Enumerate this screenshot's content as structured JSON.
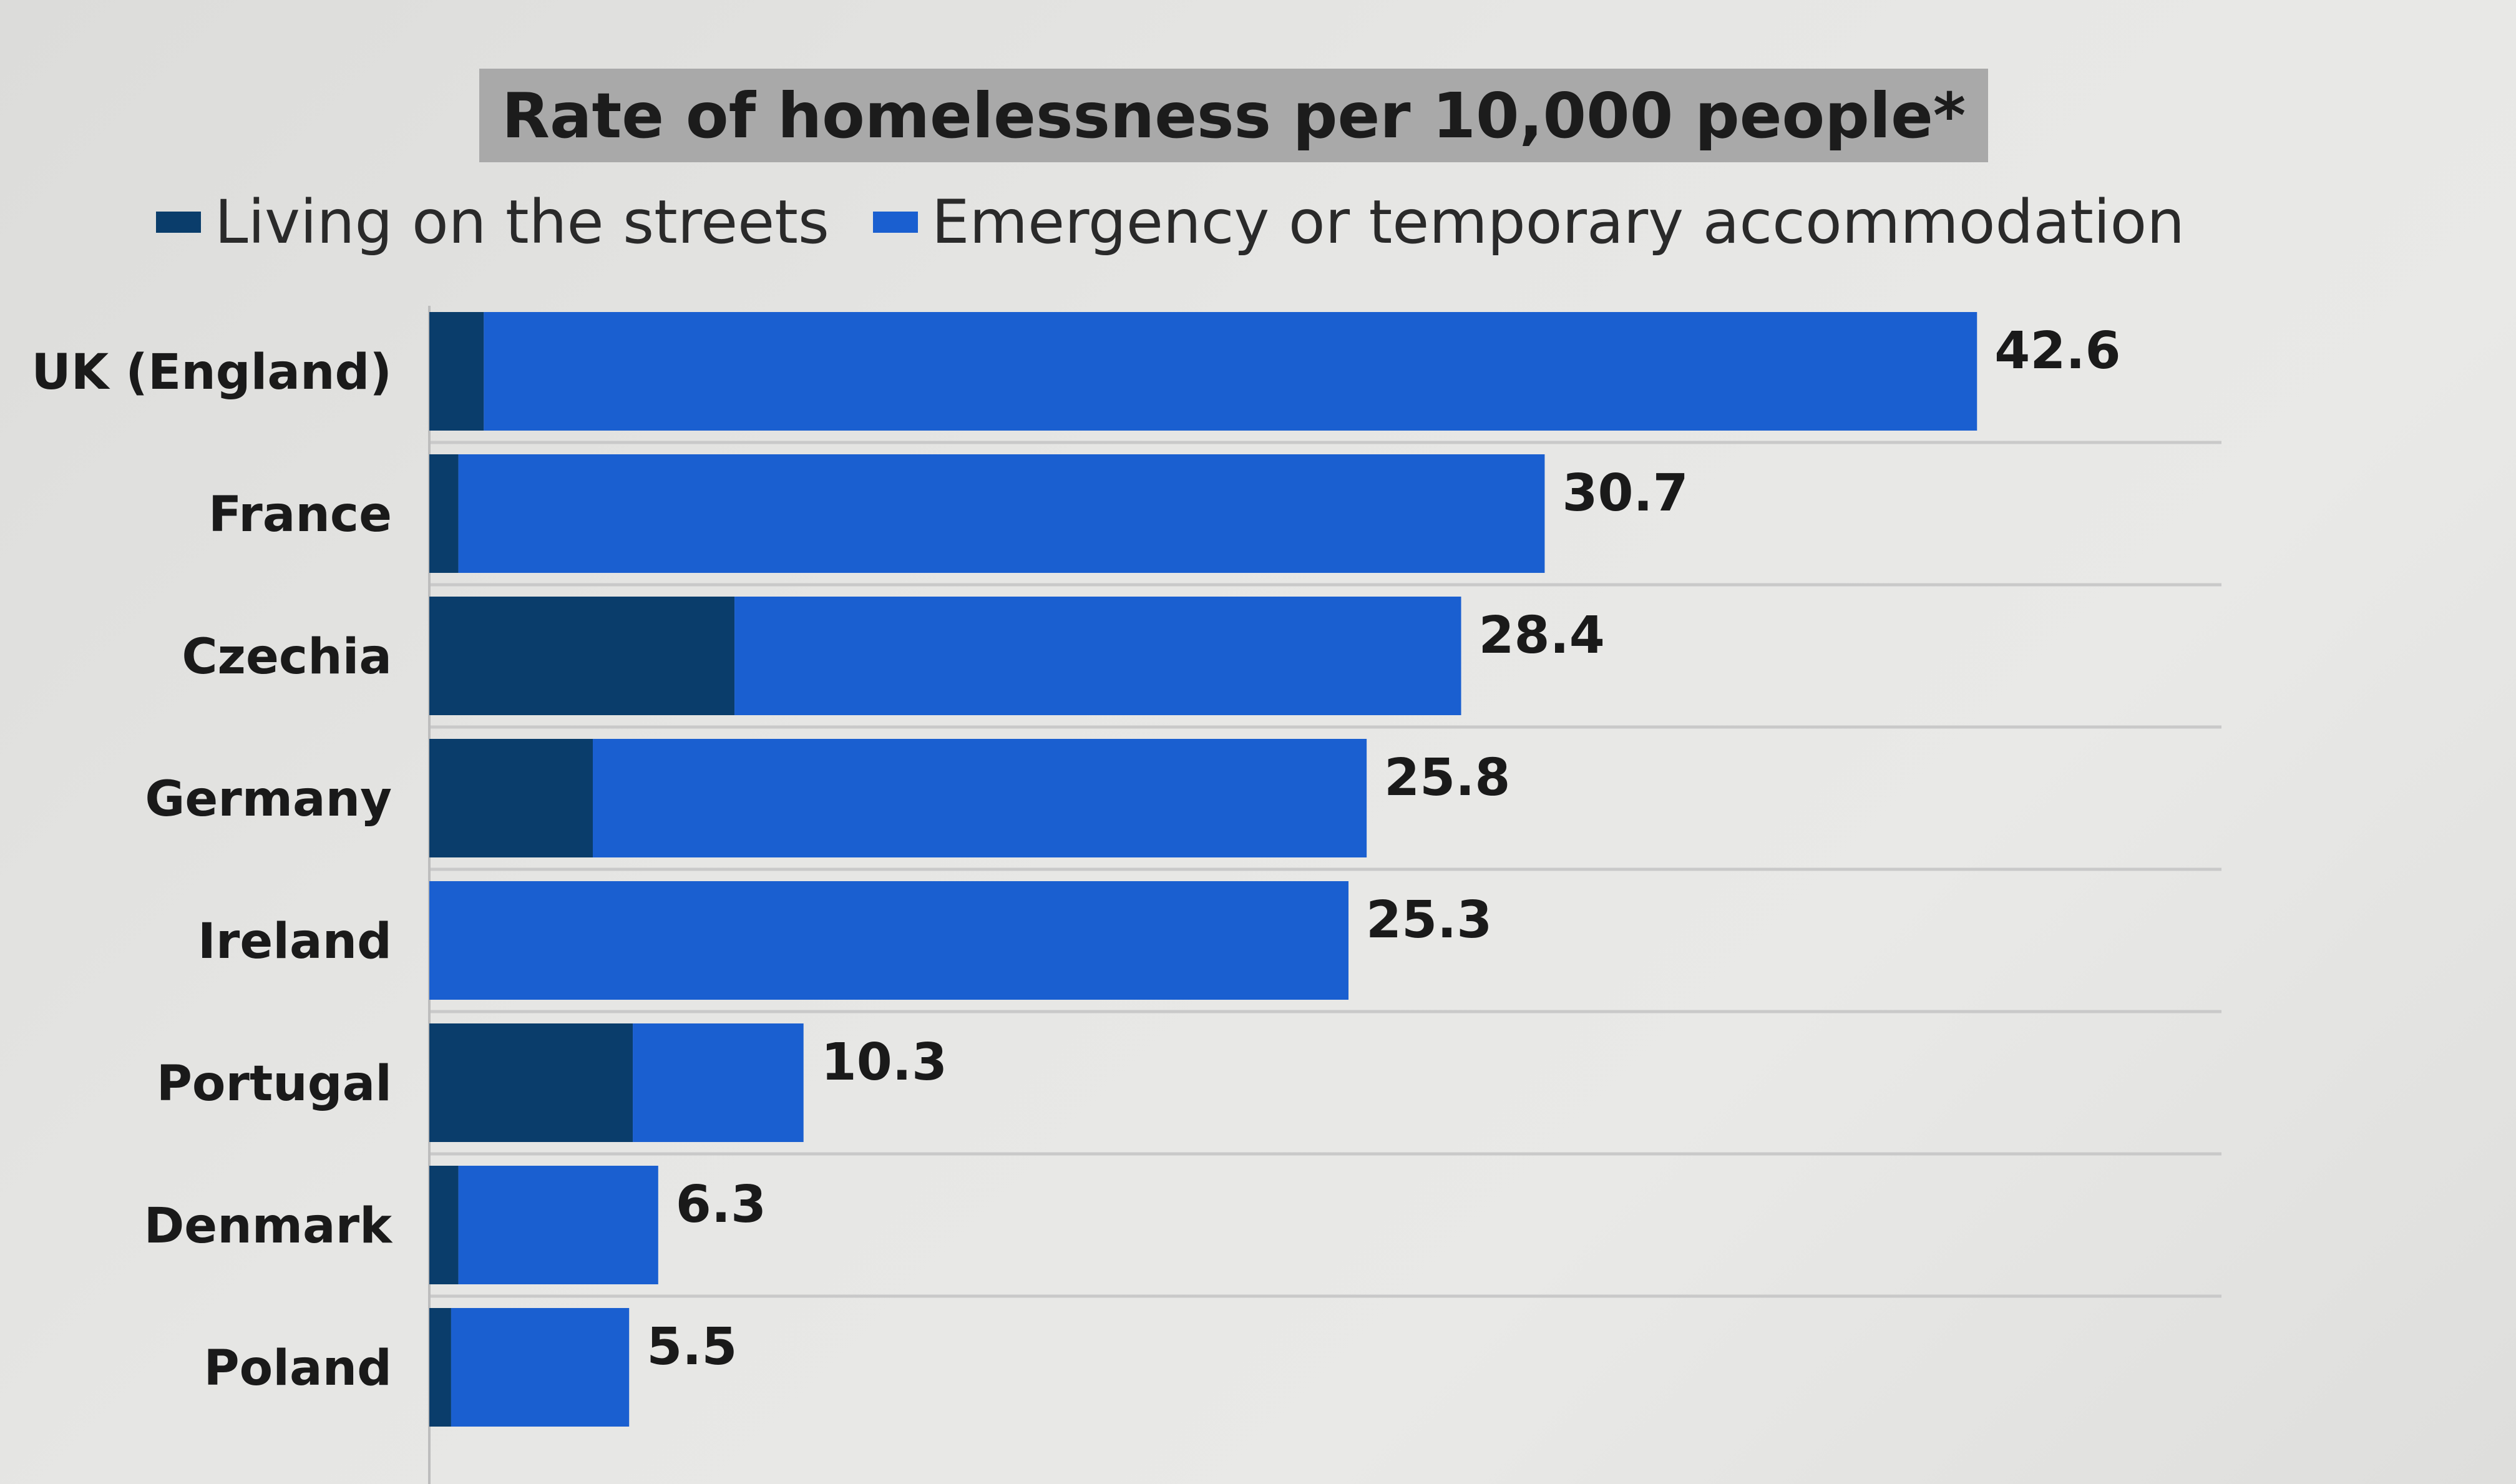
{
  "chart_data": {
    "type": "bar",
    "orientation": "horizontal",
    "stacked": true,
    "title": "Rate of homelessness per 10,000 people*",
    "categories": [
      "UK (England)",
      "France",
      "Czechia",
      "Germany",
      "Ireland",
      "Portugal",
      "Denmark",
      "Poland"
    ],
    "series": [
      {
        "name": "Living on the streets",
        "color": "#0a3d6b",
        "values": [
          1.5,
          0.8,
          8.4,
          4.5,
          0,
          5.6,
          0.8,
          0.6
        ]
      },
      {
        "name": "Emergency or temporary accommodation",
        "color": "#1a5fd0",
        "values": [
          41.1,
          29.9,
          20.0,
          21.3,
          25.3,
          4.7,
          5.5,
          4.9
        ]
      }
    ],
    "totals": [
      "42.6",
      "30.7",
      "28.4",
      "25.8",
      "25.3",
      "10.3",
      "6.3",
      "5.5"
    ],
    "xlim": [
      0,
      45
    ],
    "grid": true,
    "legend_position": "top"
  }
}
